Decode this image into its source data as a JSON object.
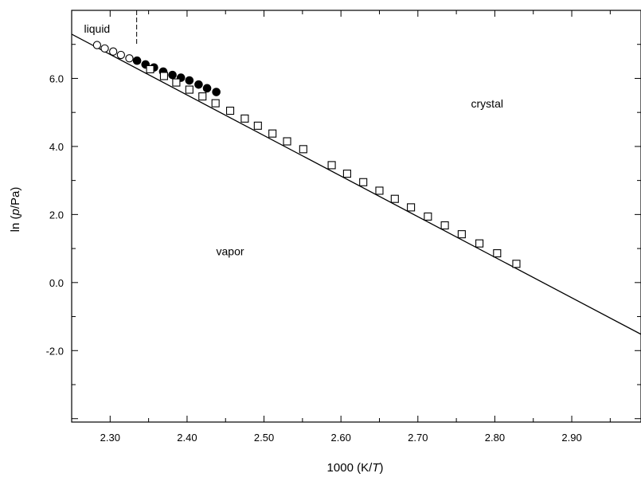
{
  "chart_data": {
    "type": "scatter",
    "xlabel": {
      "prefix": "1000 (K/",
      "italic": "T",
      "suffix": ")"
    },
    "ylabel": {
      "prefix": "ln (",
      "italic": "p",
      "suffix": "/Pa)"
    },
    "xlim": [
      2.25,
      2.99
    ],
    "ylim": [
      -4.1,
      8.0
    ],
    "x_ticks": [
      2.3,
      2.4,
      2.5,
      2.6,
      2.7,
      2.8,
      2.9
    ],
    "x_tick_labels": [
      "2.30",
      "2.40",
      "2.50",
      "2.60",
      "2.70",
      "2.80",
      "2.90"
    ],
    "y_ticks": [
      -2.0,
      0.0,
      2.0,
      4.0,
      6.0
    ],
    "y_tick_labels": [
      "-2.0",
      "0.0",
      "2.0",
      "4.0",
      "6.0"
    ],
    "annotations": [
      {
        "text": "liquid",
        "x": 2.283,
        "y": 7.35
      },
      {
        "text": "crystal",
        "x": 2.79,
        "y": 5.15
      },
      {
        "text": "vapor",
        "x": 2.456,
        "y": 0.8
      }
    ],
    "vertical_marker": {
      "x": 2.3345,
      "y_from": 8.0,
      "y_to": 7.0
    },
    "fit_line": {
      "x": [
        2.25,
        2.99
      ],
      "y": [
        7.3,
        -1.52
      ]
    },
    "series": [
      {
        "marker": "open-circle",
        "x": [
          2.283,
          2.293,
          2.304,
          2.314,
          2.325
        ],
        "y": [
          6.98,
          6.88,
          6.79,
          6.69,
          6.59
        ]
      },
      {
        "marker": "filled-circle",
        "x": [
          2.335,
          2.346,
          2.357,
          2.369,
          2.381,
          2.392,
          2.403,
          2.415,
          2.426,
          2.438
        ],
        "y": [
          6.52,
          6.41,
          6.32,
          6.2,
          6.1,
          6.02,
          5.94,
          5.82,
          5.71,
          5.6
        ]
      },
      {
        "marker": "open-square",
        "x": [
          2.352,
          2.37,
          2.386,
          2.403,
          2.42,
          2.437,
          2.456,
          2.475,
          2.492,
          2.511,
          2.53,
          2.551,
          2.588,
          2.608,
          2.629,
          2.65,
          2.67,
          2.691,
          2.713,
          2.735,
          2.757,
          2.78,
          2.803,
          2.828
        ],
        "y": [
          6.27,
          6.07,
          5.88,
          5.67,
          5.47,
          5.27,
          5.05,
          4.82,
          4.61,
          4.38,
          4.15,
          3.92,
          3.45,
          3.2,
          2.95,
          2.7,
          2.46,
          2.21,
          1.94,
          1.68,
          1.42,
          1.15,
          0.86,
          0.55
        ]
      }
    ]
  }
}
